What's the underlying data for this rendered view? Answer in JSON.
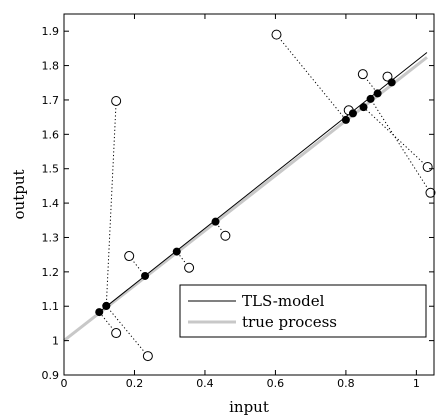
{
  "chart_data": {
    "type": "scatter",
    "title": "",
    "xlabel": "input",
    "ylabel": "output",
    "xlim": [
      0,
      1.05
    ],
    "ylim": [
      0.9,
      1.95
    ],
    "xticks": [
      "0",
      "0.2",
      "0.4",
      "0.6",
      "0.8",
      "1"
    ],
    "yticks": [
      "0.9",
      "1",
      "1.1",
      "1.2",
      "1.3",
      "1.4",
      "1.5",
      "1.6",
      "1.7",
      "1.8",
      "1.9"
    ],
    "grid": false,
    "legend_position": "bottom-right",
    "colors": {
      "tls": "#000000",
      "true_process": "#c8c8c8"
    },
    "series": [
      {
        "name": "TLS-model",
        "kind": "line",
        "x": [
          0.1,
          1.03
        ],
        "y": [
          1.083,
          1.838
        ]
      },
      {
        "name": "true process",
        "kind": "line",
        "x": [
          0.0,
          1.03
        ],
        "y": [
          1.0,
          1.824
        ]
      }
    ],
    "observations": {
      "x": [
        0.148,
        0.185,
        0.148,
        0.238,
        0.355,
        0.458,
        0.603,
        0.808,
        0.848,
        0.918,
        1.032,
        1.04
      ],
      "y": [
        1.697,
        1.246,
        1.022,
        0.955,
        1.212,
        1.305,
        1.89,
        1.67,
        1.775,
        1.768,
        1.505,
        1.43
      ]
    },
    "projections": {
      "x": [
        0.12,
        0.23,
        0.1,
        0.12,
        0.32,
        0.43,
        0.8,
        0.82,
        0.89,
        0.93,
        0.85,
        0.87
      ],
      "y": [
        1.101,
        1.188,
        1.083,
        1.101,
        1.259,
        1.346,
        1.642,
        1.661,
        1.719,
        1.751,
        1.679,
        1.703
      ]
    }
  }
}
